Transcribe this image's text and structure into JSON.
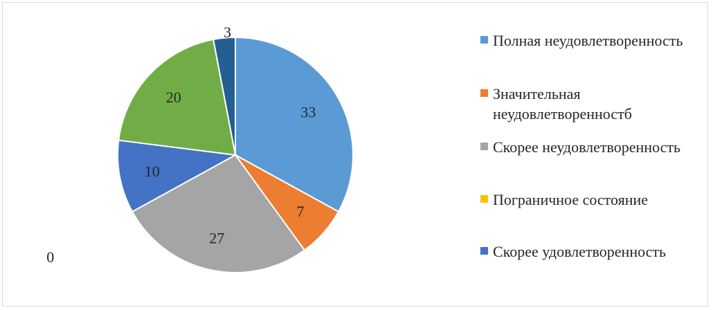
{
  "chart_data": {
    "type": "pie",
    "slices": [
      {
        "label": "Полная неудовлетворенность",
        "value": 33,
        "color": "#5b9bd5"
      },
      {
        "label": "Значительная неудовлетворенностб",
        "value": 7,
        "color": "#ed7d31"
      },
      {
        "label": "Скорее неудовлетворенность",
        "value": 27,
        "color": "#a5a5a5"
      },
      {
        "label": "Пограничное состояние",
        "value": 0,
        "color": "#ffc000"
      },
      {
        "label": "Скорее удовлетворенность",
        "value": 10,
        "color": "#4472c4"
      },
      {
        "label": "",
        "value": 20,
        "color": "#70ad47"
      },
      {
        "label": "",
        "value": 3,
        "color": "#255e91"
      }
    ],
    "data_labels": [
      "33",
      "7",
      "27",
      "0",
      "10",
      "20",
      "3"
    ],
    "legend_position": "right"
  }
}
